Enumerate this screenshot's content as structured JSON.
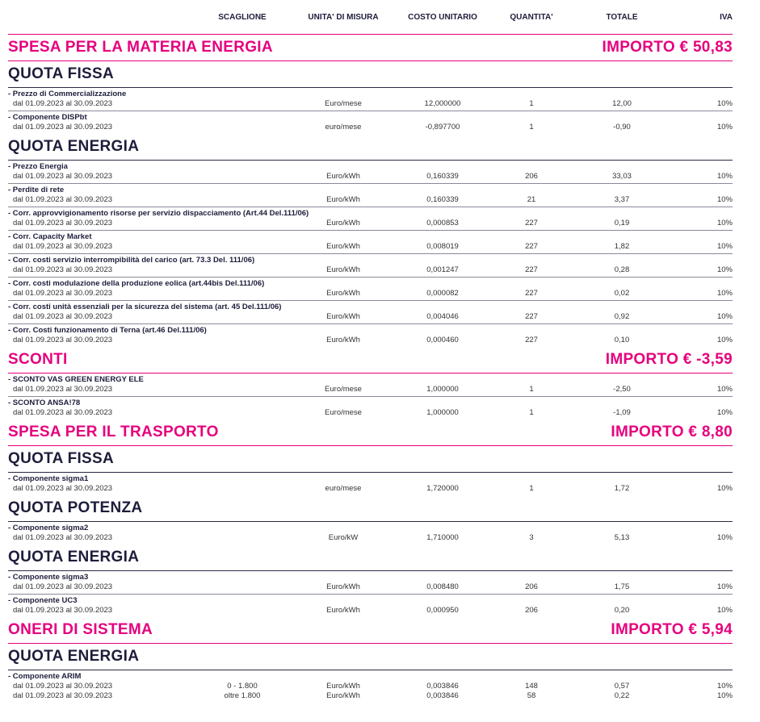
{
  "columns": {
    "scaglione": "SCAGLIONE",
    "unita": "UNITA' DI MISURA",
    "costo": "COSTO UNITARIO",
    "quantita": "QUANTITA'",
    "totale": "TOTALE",
    "iva": "IVA"
  },
  "colors": {
    "accent": "#e6007e",
    "text": "#1d1d3b"
  },
  "blocks": [
    {
      "type": "section",
      "title": "SPESA PER LA MATERIA ENERGIA",
      "amount": "IMPORTO € 50,83"
    },
    {
      "type": "group",
      "title": "QUOTA FISSA"
    },
    {
      "type": "item",
      "name": "- Prezzo di Commercializzazione",
      "rows": [
        {
          "period": "dal 01.09.2023 al 30.09.2023",
          "scaglione": "",
          "unit": "Euro/mese",
          "cost": "12,000000",
          "qty": "1",
          "total": "12,00",
          "iva": "10%"
        }
      ]
    },
    {
      "type": "item",
      "last": true,
      "name": "- Componente DISPbt",
      "rows": [
        {
          "period": "dal 01.09.2023 al 30.09.2023",
          "scaglione": "",
          "unit": "euro/mese",
          "cost": "-0,897700",
          "qty": "1",
          "total": "-0,90",
          "iva": "10%"
        }
      ]
    },
    {
      "type": "group",
      "title": "QUOTA ENERGIA"
    },
    {
      "type": "item",
      "name": "- Prezzo Energia",
      "rows": [
        {
          "period": "dal 01.09.2023 al 30.09.2023",
          "scaglione": "",
          "unit": "Euro/kWh",
          "cost": "0,160339",
          "qty": "206",
          "total": "33,03",
          "iva": "10%"
        }
      ]
    },
    {
      "type": "item",
      "name": "- Perdite di rete",
      "rows": [
        {
          "period": "dal 01.09.2023 al 30.09.2023",
          "scaglione": "",
          "unit": "Euro/kWh",
          "cost": "0,160339",
          "qty": "21",
          "total": "3,37",
          "iva": "10%"
        }
      ]
    },
    {
      "type": "item",
      "name": "- Corr. approvvigionamento risorse per servizio dispacciamento (Art.44 Del.111/06)",
      "rows": [
        {
          "period": "dal 01.09.2023 al 30.09.2023",
          "scaglione": "",
          "unit": "Euro/kWh",
          "cost": "0,000853",
          "qty": "227",
          "total": "0,19",
          "iva": "10%"
        }
      ]
    },
    {
      "type": "item",
      "name": "- Corr. Capacity Market",
      "rows": [
        {
          "period": "dal 01.09.2023 al 30.09.2023",
          "scaglione": "",
          "unit": "Euro/kWh",
          "cost": "0,008019",
          "qty": "227",
          "total": "1,82",
          "iva": "10%"
        }
      ]
    },
    {
      "type": "item",
      "name": "- Corr. costi servizio interrompibilità del carico (art. 73.3 Del. 111/06)",
      "rows": [
        {
          "period": "dal 01.09.2023 al 30.09.2023",
          "scaglione": "",
          "unit": "Euro/kWh",
          "cost": "0,001247",
          "qty": "227",
          "total": "0,28",
          "iva": "10%"
        }
      ]
    },
    {
      "type": "item",
      "name": "- Corr. costi modulazione della produzione eolica (art.44bis Del.111/06)",
      "rows": [
        {
          "period": "dal 01.09.2023 al 30.09.2023",
          "scaglione": "",
          "unit": "Euro/kWh",
          "cost": "0,000082",
          "qty": "227",
          "total": "0,02",
          "iva": "10%"
        }
      ]
    },
    {
      "type": "item",
      "name": "- Corr. costi unità essenziali per la sicurezza del sistema (art. 45 Del.111/06)",
      "rows": [
        {
          "period": "dal 01.09.2023 al 30.09.2023",
          "scaglione": "",
          "unit": "Euro/kWh",
          "cost": "0,004046",
          "qty": "227",
          "total": "0,92",
          "iva": "10%"
        }
      ]
    },
    {
      "type": "item",
      "last": true,
      "name": "- Corr. Costi funzionamento di Terna (art.46 Del.111/06)",
      "rows": [
        {
          "period": "dal 01.09.2023 al 30.09.2023",
          "scaglione": "",
          "unit": "Euro/kWh",
          "cost": "0,000460",
          "qty": "227",
          "total": "0,10",
          "iva": "10%"
        }
      ]
    },
    {
      "type": "section",
      "title": "SCONTI",
      "amount": "IMPORTO € -3,59"
    },
    {
      "type": "item",
      "name": "- SCONTO VAS GREEN ENERGY ELE",
      "rows": [
        {
          "period": "dal 01.09.2023 al 30.09.2023",
          "scaglione": "",
          "unit": "Euro/mese",
          "cost": "1,000000",
          "qty": "1",
          "total": "-2,50",
          "iva": "10%"
        }
      ]
    },
    {
      "type": "item",
      "last": true,
      "name": "- SCONTO ANSA!78",
      "rows": [
        {
          "period": "dal 01.09.2023 al 30.09.2023",
          "scaglione": "",
          "unit": "Euro/mese",
          "cost": "1,000000",
          "qty": "1",
          "total": "-1,09",
          "iva": "10%"
        }
      ]
    },
    {
      "type": "section",
      "title": "SPESA PER IL TRASPORTO",
      "amount": "IMPORTO € 8,80"
    },
    {
      "type": "group",
      "title": "QUOTA FISSA"
    },
    {
      "type": "item",
      "last": true,
      "name": "- Componente sigma1",
      "rows": [
        {
          "period": "dal 01.09.2023 al 30.09.2023",
          "scaglione": "",
          "unit": "euro/mese",
          "cost": "1,720000",
          "qty": "1",
          "total": "1,72",
          "iva": "10%"
        }
      ]
    },
    {
      "type": "group",
      "title": "QUOTA POTENZA"
    },
    {
      "type": "item",
      "last": true,
      "name": "- Componente sigma2",
      "rows": [
        {
          "period": "dal 01.09.2023 al 30.09.2023",
          "scaglione": "",
          "unit": "Euro/kW",
          "cost": "1,710000",
          "qty": "3",
          "total": "5,13",
          "iva": "10%"
        }
      ]
    },
    {
      "type": "group",
      "title": "QUOTA ENERGIA"
    },
    {
      "type": "item",
      "name": "- Componente sigma3",
      "rows": [
        {
          "period": "dal 01.09.2023 al 30.09.2023",
          "scaglione": "",
          "unit": "Euro/kWh",
          "cost": "0,008480",
          "qty": "206",
          "total": "1,75",
          "iva": "10%"
        }
      ]
    },
    {
      "type": "item",
      "last": true,
      "name": "- Componente UC3",
      "rows": [
        {
          "period": "dal 01.09.2023 al 30.09.2023",
          "scaglione": "",
          "unit": "Euro/kWh",
          "cost": "0,000950",
          "qty": "206",
          "total": "0,20",
          "iva": "10%"
        }
      ]
    },
    {
      "type": "section",
      "title": "ONERI DI SISTEMA",
      "amount": "IMPORTO € 5,94"
    },
    {
      "type": "group",
      "title": "QUOTA ENERGIA"
    },
    {
      "type": "item",
      "last": true,
      "name": "- Componente ARIM",
      "rows": [
        {
          "period": "dal 01.09.2023 al 30.09.2023",
          "scaglione": "0 - 1.800",
          "unit": "Euro/kWh",
          "cost": "0,003846",
          "qty": "148",
          "total": "0,57",
          "iva": "10%"
        },
        {
          "period": "dal 01.09.2023 al 30.09.2023",
          "scaglione": "oltre 1.800",
          "unit": "Euro/kWh",
          "cost": "0,003846",
          "qty": "58",
          "total": "0,22",
          "iva": "10%"
        }
      ]
    }
  ]
}
